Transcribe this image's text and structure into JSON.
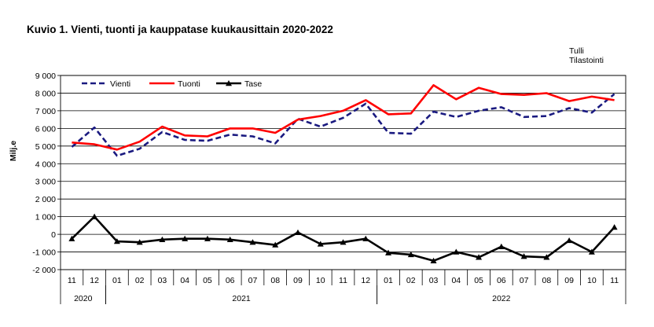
{
  "title": "Kuvio 1. Vienti, tuonti ja kauppatase kuukausittain  2020-2022",
  "source": {
    "line1": "Tulli",
    "line2": "Tilastointi"
  },
  "chart_data": {
    "type": "line",
    "ylabel": "Milj.e",
    "ylim": [
      -2000,
      9000
    ],
    "yticks": [
      -2000,
      -1000,
      0,
      1000,
      2000,
      3000,
      4000,
      5000,
      6000,
      7000,
      8000,
      9000
    ],
    "ytick_labels": [
      "-2 000",
      "-1 000",
      "0",
      "1 000",
      "2 000",
      "3 000",
      "4 000",
      "5 000",
      "6 000",
      "7 000",
      "8 000",
      "9 000"
    ],
    "grid": true,
    "legend_position": "top-left",
    "categories": [
      "11",
      "12",
      "01",
      "02",
      "03",
      "04",
      "05",
      "06",
      "07",
      "08",
      "09",
      "10",
      "11",
      "12",
      "01",
      "02",
      "03",
      "04",
      "05",
      "06",
      "07",
      "08",
      "09",
      "10",
      "11"
    ],
    "years": [
      {
        "label": "2020",
        "start": 0,
        "count": 2
      },
      {
        "label": "2021",
        "start": 2,
        "count": 12
      },
      {
        "label": "2022",
        "start": 14,
        "count": 11
      }
    ],
    "series": [
      {
        "name": "Vienti",
        "color": "#1a1a80",
        "style": "dashed",
        "values": [
          4950,
          6050,
          4450,
          4850,
          5800,
          5350,
          5300,
          5650,
          5550,
          5150,
          6550,
          6100,
          6600,
          7400,
          5750,
          5700,
          6950,
          6650,
          7000,
          7200,
          6650,
          6700,
          7150,
          6900,
          7950
        ]
      },
      {
        "name": "Tuonti",
        "color": "#ff0000",
        "style": "solid",
        "values": [
          5200,
          5100,
          4800,
          5250,
          6100,
          5600,
          5550,
          6000,
          6000,
          5750,
          6500,
          6700,
          7000,
          7600,
          6800,
          6850,
          8450,
          7650,
          8300,
          7950,
          7900,
          8000,
          7550,
          7800,
          7600
        ]
      },
      {
        "name": "Tase",
        "color": "#000000",
        "style": "solid-triangle",
        "values": [
          -250,
          1000,
          -400,
          -450,
          -300,
          -250,
          -250,
          -300,
          -450,
          -600,
          100,
          -550,
          -450,
          -250,
          -1050,
          -1150,
          -1500,
          -1000,
          -1300,
          -700,
          -1250,
          -1300,
          -350,
          -1000,
          400
        ]
      }
    ]
  }
}
